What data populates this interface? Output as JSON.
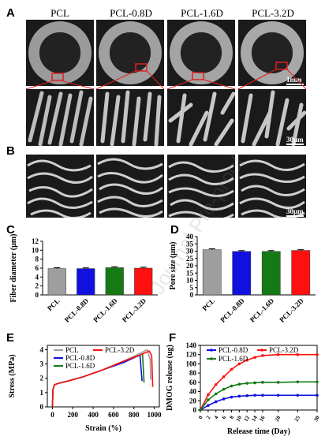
{
  "panels": {
    "A": "A",
    "B": "B",
    "C": "C",
    "D": "D",
    "E": "E",
    "F": "F"
  },
  "groups": [
    "PCL",
    "PCL-0.8D",
    "PCL-1.6D",
    "PCL-3.2D"
  ],
  "scale_bars": {
    "a_top": "1mm",
    "a_bottom": "30μm",
    "b": "30μm"
  },
  "chart_data": [
    {
      "panel": "C",
      "type": "bar",
      "ylabel": "Fiber diameter (μm)",
      "categories": [
        "PCL",
        "PCL-0.8D",
        "PCL-1.6D",
        "PCL-3.2D"
      ],
      "values": [
        5.9,
        5.9,
        6.1,
        6.0
      ],
      "errors": [
        0.2,
        0.15,
        0.2,
        0.2
      ],
      "ylim": [
        0,
        12
      ],
      "yticks": [
        0,
        2,
        4,
        6,
        8,
        10,
        12
      ],
      "colors": [
        "#9e9e9e",
        "#1010e0",
        "#157a15",
        "#ff1010"
      ]
    },
    {
      "panel": "D",
      "type": "bar",
      "ylabel": "Pore size (μm)",
      "categories": [
        "PCL",
        "PCL-0.8D",
        "PCL-1.6D",
        "PCL-3.2D"
      ],
      "values": [
        31,
        29.8,
        29.8,
        30.5
      ],
      "errors": [
        0.6,
        0.6,
        0.6,
        0.5
      ],
      "ylim": [
        0,
        40
      ],
      "yticks": [
        0,
        5,
        10,
        15,
        20,
        25,
        30,
        35,
        40
      ],
      "colors": [
        "#9e9e9e",
        "#1010e0",
        "#157a15",
        "#ff1010"
      ]
    },
    {
      "panel": "E",
      "type": "line",
      "xlabel": "Strain (%)",
      "ylabel": "Stress (MPa)",
      "xlim": [
        -50,
        1050
      ],
      "ylim": [
        0,
        4.3
      ],
      "xticks": [
        0,
        200,
        400,
        600,
        800,
        1000
      ],
      "yticks": [
        0,
        1,
        2,
        3,
        4
      ],
      "legend": "top-left",
      "series": [
        {
          "name": "PCL",
          "color": "#9e9e9e",
          "x": [
            0,
            5,
            20,
            60,
            150,
            300,
            500,
            700,
            850,
            930,
            960,
            965
          ],
          "y": [
            0.0,
            1.2,
            1.55,
            1.65,
            1.8,
            2.1,
            2.6,
            3.2,
            3.7,
            4.0,
            3.3,
            1.9
          ]
        },
        {
          "name": "PCL-0.8D",
          "color": "#1010e0",
          "x": [
            0,
            5,
            20,
            60,
            150,
            300,
            500,
            700,
            820,
            860,
            880
          ],
          "y": [
            0.0,
            1.2,
            1.55,
            1.65,
            1.8,
            2.1,
            2.6,
            3.1,
            3.5,
            3.6,
            1.8
          ]
        },
        {
          "name": "PCL-1.6D",
          "color": "#157a15",
          "x": [
            0,
            5,
            20,
            60,
            150,
            300,
            500,
            700,
            850,
            885,
            900
          ],
          "y": [
            0.0,
            1.2,
            1.55,
            1.65,
            1.8,
            2.1,
            2.6,
            3.2,
            3.6,
            3.7,
            1.7
          ]
        },
        {
          "name": "PCL-3.2D",
          "color": "#ff1010",
          "x": [
            0,
            5,
            20,
            60,
            150,
            300,
            500,
            700,
            850,
            950,
            975,
            985
          ],
          "y": [
            0.0,
            1.2,
            1.55,
            1.65,
            1.8,
            2.1,
            2.6,
            3.2,
            3.6,
            3.9,
            3.6,
            1.4
          ]
        }
      ]
    },
    {
      "panel": "F",
      "type": "line",
      "xlabel": "Release time (Day)",
      "ylabel": "DMOG release (ug)",
      "xlim": [
        0,
        30
      ],
      "ylim": [
        0,
        140
      ],
      "xticks": [
        0,
        2,
        4,
        6,
        8,
        10,
        12,
        14,
        16,
        20,
        25,
        30
      ],
      "yticks": [
        0,
        20,
        40,
        60,
        80,
        100,
        120,
        140
      ],
      "legend": "top-left",
      "series": [
        {
          "name": "PCL-0.8D",
          "color": "#1010e0",
          "x": [
            0,
            2,
            4,
            6,
            8,
            10,
            12,
            14,
            16,
            20,
            25,
            30
          ],
          "y": [
            0,
            10,
            18,
            24,
            28,
            30,
            31,
            32,
            32,
            32,
            32,
            32
          ]
        },
        {
          "name": "PCL-3.2D",
          "color": "#ff1010",
          "x": [
            0,
            2,
            4,
            6,
            8,
            10,
            12,
            14,
            16,
            20,
            25,
            30
          ],
          "y": [
            0,
            33,
            55,
            72,
            88,
            100,
            108,
            114,
            118,
            120,
            120,
            120
          ]
        },
        {
          "name": "PCL-1.6D",
          "color": "#157a15",
          "x": [
            0,
            2,
            4,
            6,
            8,
            10,
            12,
            14,
            16,
            20,
            25,
            30
          ],
          "y": [
            0,
            22,
            35,
            45,
            52,
            56,
            58,
            59,
            60,
            60,
            61,
            61
          ]
        }
      ]
    }
  ]
}
